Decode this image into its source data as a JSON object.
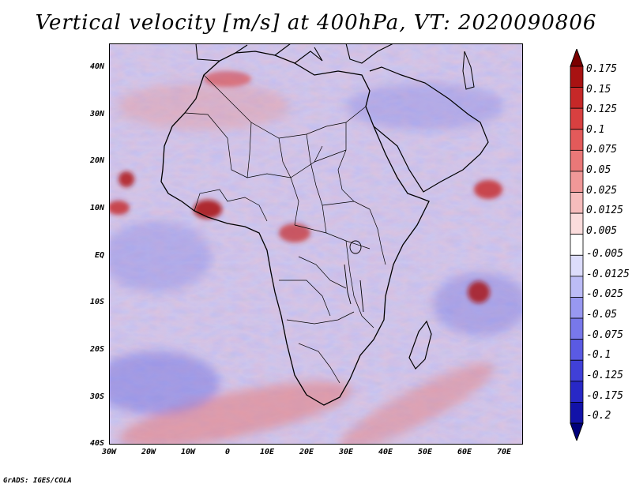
{
  "title": "Vertical velocity [m/s] at 400hPa, VT: 2020090806",
  "credit": "GrADS: IGES/COLA",
  "map": {
    "longitude_labels": [
      "30W",
      "20W",
      "10W",
      "0",
      "10E",
      "20E",
      "30E",
      "40E",
      "50E",
      "60E",
      "70E"
    ],
    "latitude_labels": [
      "40N",
      "30N",
      "20N",
      "10N",
      "EQ",
      "10S",
      "20S",
      "30S",
      "40S"
    ],
    "extent": {
      "lon_min": -30,
      "lon_max": 75,
      "lat_min": -40,
      "lat_max": 45
    }
  },
  "colorbar": {
    "labels": [
      "0.175",
      "0.15",
      "0.125",
      "0.1",
      "0.075",
      "0.05",
      "0.025",
      "0.0125",
      "0.005",
      "-0.005",
      "-0.0125",
      "-0.025",
      "-0.05",
      "-0.075",
      "-0.1",
      "-0.125",
      "-0.175",
      "-0.2"
    ],
    "colors": [
      "#7a0000",
      "#a81212",
      "#c62828",
      "#d84040",
      "#e35a5a",
      "#ea7878",
      "#f09898",
      "#f6bcbc",
      "#fbdcdc",
      "#ffffff",
      "#dcdcfb",
      "#bcbcf6",
      "#9898f0",
      "#7878ea",
      "#5a5ae3",
      "#4040d8",
      "#2828c6",
      "#1212a8",
      "#00007a"
    ]
  }
}
